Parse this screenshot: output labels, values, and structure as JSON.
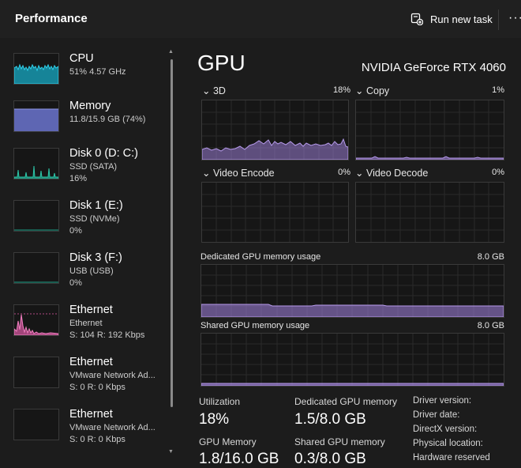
{
  "header": {
    "title": "Performance",
    "run_new_task": "Run new task",
    "more": "···"
  },
  "sidebar": {
    "items": [
      {
        "name": "CPU",
        "sub1": "51%  4.57 GHz",
        "sub2": "",
        "sub3": "",
        "color": "#17a9c4"
      },
      {
        "name": "Memory",
        "sub1": "11.8/15.9 GB (74%)",
        "sub2": "",
        "sub3": "",
        "color": "#6b74cf"
      },
      {
        "name": "Disk 0 (D: C:)",
        "sub1": "SSD (SATA)",
        "sub2": "16%",
        "sub3": "",
        "color": "#1fa48c"
      },
      {
        "name": "Disk 1 (E:)",
        "sub1": "SSD (NVMe)",
        "sub2": "0%",
        "sub3": "",
        "color": "#1fa48c"
      },
      {
        "name": "Disk 3 (F:)",
        "sub1": "USB (USB)",
        "sub2": "0%",
        "sub3": "",
        "color": "#1fa48c"
      },
      {
        "name": "Ethernet",
        "sub1": "Ethernet",
        "sub2": "S: 104  R: 192 Kbps",
        "sub3": "",
        "color": "#e05aa6"
      },
      {
        "name": "Ethernet",
        "sub1": "VMware Network Ad...",
        "sub2": "S: 0  R: 0 Kbps",
        "sub3": "",
        "color": "#e05aa6"
      },
      {
        "name": "Ethernet",
        "sub1": "VMware Network Ad...",
        "sub2": "S: 0  R: 0 Kbps",
        "sub3": "",
        "color": "#e05aa6"
      }
    ],
    "usage": {
      "cpu": 0.51,
      "memory": 0.74,
      "disk0": 0.16,
      "disk1": 0.0,
      "disk3": 0.0
    }
  },
  "main": {
    "title": "GPU",
    "model": "NVIDIA GeForce RTX 4060",
    "accent": "#9b7dd4",
    "engines": [
      {
        "label": "3D",
        "pct": "18%"
      },
      {
        "label": "Copy",
        "pct": "1%"
      },
      {
        "label": "Video Encode",
        "pct": "0%"
      },
      {
        "label": "Video Decode",
        "pct": "0%"
      }
    ],
    "dedicated_label": "Dedicated GPU memory usage",
    "dedicated_max": "8.0 GB",
    "shared_label": "Shared GPU memory usage",
    "shared_max": "8.0 GB",
    "dedicated_fraction": 0.1875,
    "shared_fraction": 0.0375,
    "stats": {
      "utilization_label": "Utilization",
      "utilization_value": "18%",
      "dedicated_label": "Dedicated GPU memory",
      "dedicated_value": "1.5/8.0 GB",
      "gpu_memory_label": "GPU Memory",
      "gpu_memory_value": "1.8/16.0 GB",
      "shared_label": "Shared GPU memory",
      "shared_value": "0.3/8.0 GB"
    },
    "driver": {
      "version": "Driver version:",
      "date": "Driver date:",
      "directx": "DirectX version:",
      "location": "Physical location:",
      "reserved": "Hardware reserved"
    }
  }
}
